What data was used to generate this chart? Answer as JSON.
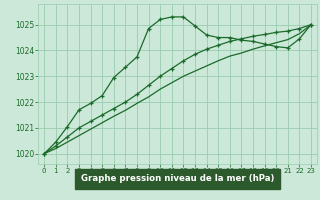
{
  "title": "Graphe pression niveau de la mer (hPa)",
  "bg_color": "#cce8d8",
  "grid_color": "#99ccb0",
  "line_color": "#1a6b2a",
  "axis_label_bg": "#336633",
  "xlim": [
    -0.5,
    23.5
  ],
  "ylim": [
    1019.6,
    1025.8
  ],
  "yticks": [
    1020,
    1021,
    1022,
    1023,
    1024,
    1025
  ],
  "xticks": [
    0,
    1,
    2,
    3,
    4,
    5,
    6,
    7,
    8,
    9,
    10,
    11,
    12,
    13,
    14,
    15,
    16,
    17,
    18,
    19,
    20,
    21,
    22,
    23
  ],
  "s1_x": [
    0,
    1,
    2,
    3,
    4,
    5,
    6,
    7,
    8,
    9,
    10,
    11,
    12,
    13,
    14,
    15,
    16,
    17,
    18,
    19,
    20,
    21,
    22,
    23
  ],
  "s1_y": [
    1020.0,
    1020.45,
    1021.05,
    1021.7,
    1021.95,
    1022.25,
    1022.95,
    1023.35,
    1023.75,
    1024.85,
    1025.2,
    1025.3,
    1025.3,
    1024.95,
    1024.6,
    1024.5,
    1024.5,
    1024.4,
    1024.35,
    1024.25,
    1024.15,
    1024.1,
    1024.45,
    1025.0
  ],
  "s2_x": [
    0,
    1,
    2,
    3,
    4,
    5,
    6,
    7,
    8,
    9,
    10,
    11,
    12,
    13,
    14,
    15,
    16,
    17,
    18,
    19,
    20,
    21,
    22,
    23
  ],
  "s2_y": [
    1020.0,
    1020.3,
    1020.65,
    1021.0,
    1021.25,
    1021.5,
    1021.75,
    1022.0,
    1022.3,
    1022.65,
    1023.0,
    1023.3,
    1023.6,
    1023.85,
    1024.05,
    1024.2,
    1024.35,
    1024.45,
    1024.55,
    1024.62,
    1024.7,
    1024.75,
    1024.85,
    1025.0
  ],
  "s3_x": [
    0,
    1,
    2,
    3,
    4,
    5,
    6,
    7,
    8,
    9,
    10,
    11,
    12,
    13,
    14,
    15,
    16,
    17,
    18,
    19,
    20,
    21,
    22,
    23
  ],
  "s3_y": [
    1020.0,
    1020.2,
    1020.45,
    1020.7,
    1020.95,
    1021.2,
    1021.45,
    1021.68,
    1021.95,
    1022.2,
    1022.5,
    1022.75,
    1023.0,
    1023.2,
    1023.4,
    1023.6,
    1023.78,
    1023.9,
    1024.05,
    1024.18,
    1024.3,
    1024.42,
    1024.65,
    1025.0
  ],
  "xlabel_text": "Graphe pression niveau de la mer (hPa)",
  "xlabel_bg": "#2d5a2d",
  "xlabel_fg": "#ffffff"
}
